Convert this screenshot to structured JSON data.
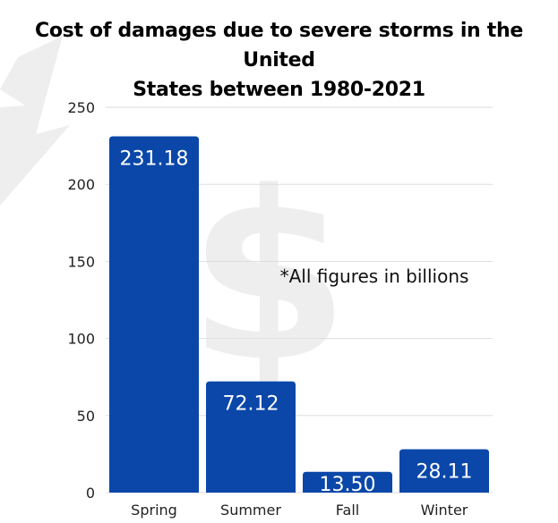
{
  "chart_data": {
    "type": "bar",
    "title_lines": [
      "Cost of damages due to severe storms in the United",
      "States between 1980-2021"
    ],
    "categories": [
      "Spring",
      "Summer",
      "Fall",
      "Winter"
    ],
    "values": [
      231.18,
      72.12,
      13.5,
      28.11
    ],
    "value_labels": [
      "231.18",
      "72.12",
      "13.50",
      "28.11"
    ],
    "yticks": [
      0,
      50,
      100,
      150,
      200,
      250
    ],
    "ylim": [
      0,
      250
    ],
    "grid": true,
    "annotation": "*All figures in billions",
    "bar_color": "#0a47a9",
    "grid_color": "#dddddd",
    "watermark_color": "#eeeeee"
  }
}
